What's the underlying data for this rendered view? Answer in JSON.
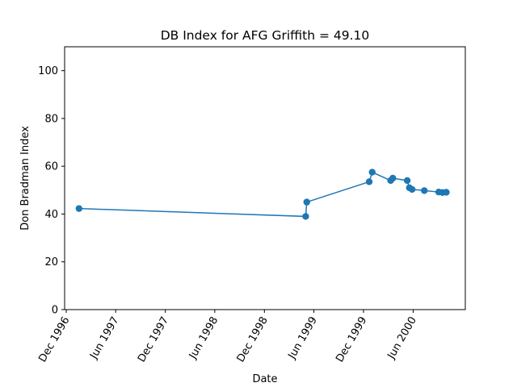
{
  "chart_data": {
    "type": "line",
    "title": "DB Index for AFG Griffith = 49.10",
    "xlabel": "Date",
    "ylabel": "Don Bradman Index",
    "ylim": [
      0,
      110
    ],
    "yticks": [
      0,
      20,
      40,
      60,
      80,
      100
    ],
    "xlim": [
      "1996-11-25",
      "2000-12-10"
    ],
    "xticks": [
      {
        "date": "1996-12-01",
        "label": "Dec 1996"
      },
      {
        "date": "1997-06-01",
        "label": "Jun 1997"
      },
      {
        "date": "1997-12-01",
        "label": "Dec 1997"
      },
      {
        "date": "1998-06-01",
        "label": "Jun 1998"
      },
      {
        "date": "1998-12-01",
        "label": "Dec 1998"
      },
      {
        "date": "1999-06-01",
        "label": "Jun 1999"
      },
      {
        "date": "1999-12-01",
        "label": "Dec 1999"
      },
      {
        "date": "2000-06-01",
        "label": "Jun 2000"
      }
    ],
    "series": [
      {
        "color": "#1f77b4",
        "marker": "circle",
        "points": [
          {
            "x": "1997-01-17",
            "y": 42.3
          },
          {
            "x": "1999-05-02",
            "y": 39.0
          },
          {
            "x": "1999-05-06",
            "y": 45.0
          },
          {
            "x": "1999-12-22",
            "y": 53.5
          },
          {
            "x": "2000-01-02",
            "y": 57.5
          },
          {
            "x": "2000-03-10",
            "y": 54.0
          },
          {
            "x": "2000-03-18",
            "y": 55.0
          },
          {
            "x": "2000-05-10",
            "y": 54.0
          },
          {
            "x": "2000-05-18",
            "y": 51.0
          },
          {
            "x": "2000-05-28",
            "y": 50.3
          },
          {
            "x": "2000-07-12",
            "y": 49.8
          },
          {
            "x": "2000-09-03",
            "y": 49.2
          },
          {
            "x": "2000-09-17",
            "y": 49.0
          },
          {
            "x": "2000-10-01",
            "y": 49.1
          }
        ]
      }
    ],
    "grid": false,
    "legend": "none"
  }
}
